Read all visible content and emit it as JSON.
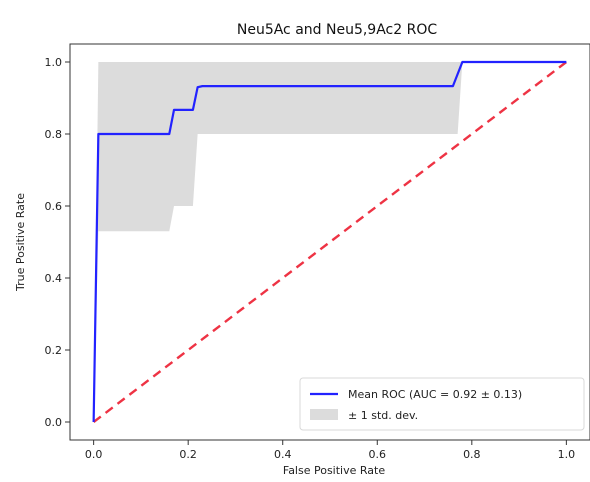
{
  "chart_data": {
    "type": "line",
    "title": "Neu5Ac and Neu5,9Ac2 ROC",
    "xlabel": "False Positive Rate",
    "ylabel": "True Positive Rate",
    "xlim": [
      -0.05,
      1.05
    ],
    "ylim": [
      -0.05,
      1.05
    ],
    "xticks": [
      0.0,
      0.2,
      0.4,
      0.6,
      0.8,
      1.0
    ],
    "yticks": [
      0.0,
      0.2,
      0.4,
      0.6,
      0.8,
      1.0
    ],
    "xtick_labels": [
      "0.0",
      "0.2",
      "0.4",
      "0.6",
      "0.8",
      "1.0"
    ],
    "ytick_labels": [
      "0.0",
      "0.2",
      "0.4",
      "0.6",
      "0.8",
      "1.0"
    ],
    "grid": false,
    "legend_position": "lower-right",
    "series": [
      {
        "name": "Mean ROC (AUC = 0.92 ± 0.13)",
        "kind": "line",
        "color": "#2222ff",
        "x": [
          0.0,
          0.01,
          0.02,
          0.16,
          0.17,
          0.21,
          0.22,
          0.23,
          0.76,
          0.78,
          0.79,
          1.0
        ],
        "y": [
          0.0,
          0.8,
          0.8,
          0.8,
          0.867,
          0.867,
          0.93,
          0.933,
          0.933,
          1.0,
          1.0,
          1.0
        ]
      },
      {
        "name": "± 1 std. dev.",
        "kind": "band",
        "color": "#d0d0d0",
        "x": [
          0.0,
          0.01,
          0.02,
          0.06,
          0.07,
          0.16,
          0.17,
          0.21,
          0.22,
          0.23,
          0.76,
          0.77,
          0.78,
          0.79,
          1.0
        ],
        "lower": [
          0.0,
          0.53,
          0.53,
          0.53,
          0.53,
          0.53,
          0.6,
          0.6,
          0.8,
          0.8,
          0.8,
          0.8,
          1.0,
          1.0,
          1.0
        ],
        "upper": [
          0.0,
          1.0,
          1.0,
          1.0,
          1.0,
          1.0,
          1.0,
          1.0,
          1.0,
          1.0,
          1.0,
          1.0,
          1.0,
          1.0,
          1.0
        ]
      },
      {
        "name": "",
        "kind": "dashed-line",
        "color": "#ee3344",
        "x": [
          0.0,
          1.0
        ],
        "y": [
          0.0,
          1.0
        ]
      }
    ]
  },
  "legend": {
    "items": [
      {
        "label": "Mean ROC (AUC = 0.92 ± 0.13)",
        "color": "#2222ff",
        "kind": "line"
      },
      {
        "label": "± 1 std. dev.",
        "color": "#d0d0d0",
        "kind": "patch"
      }
    ]
  }
}
